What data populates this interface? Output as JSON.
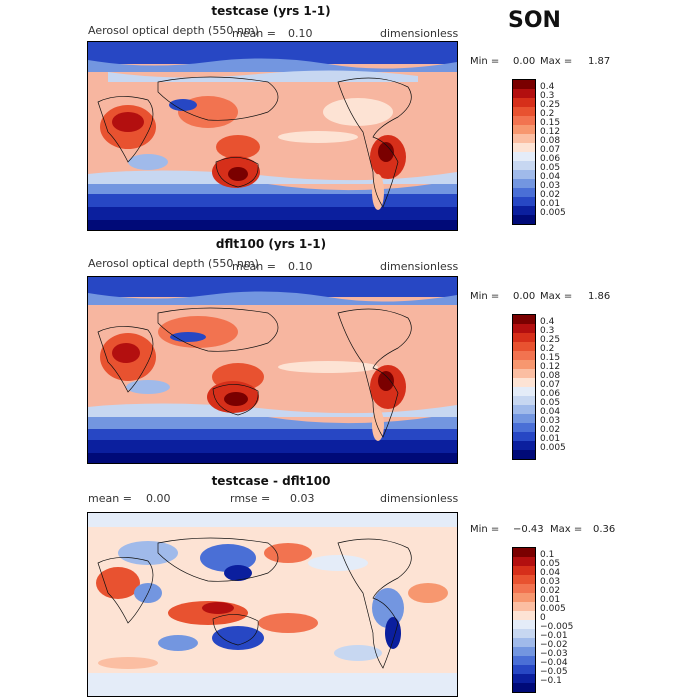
{
  "season": "SON",
  "panels": [
    {
      "title": "testcase (yrs 1-1)",
      "var_label": "Aerosol optical depth (550 nm)",
      "mean_label": "mean =",
      "mean_value": "0.10",
      "units": "dimensionless",
      "min_label": "Min =",
      "min_value": "0.00",
      "max_label": "Max =",
      "max_value": "1.87",
      "legend_labels": [
        "0.4",
        "0.3",
        "0.25",
        "0.2",
        "0.15",
        "0.12",
        "0.08",
        "0.07",
        "0.06",
        "0.05",
        "0.04",
        "0.03",
        "0.02",
        "0.01",
        "0.005"
      ]
    },
    {
      "title": "dflt100 (yrs 1-1)",
      "var_label": "Aerosol optical depth (550 nm)",
      "mean_label": "mean =",
      "mean_value": "0.10",
      "units": "dimensionless",
      "min_label": "Min =",
      "min_value": "0.00",
      "max_label": "Max =",
      "max_value": "1.86",
      "legend_labels": [
        "0.4",
        "0.3",
        "0.25",
        "0.2",
        "0.15",
        "0.12",
        "0.08",
        "0.07",
        "0.06",
        "0.05",
        "0.04",
        "0.03",
        "0.02",
        "0.01",
        "0.005"
      ]
    },
    {
      "title": "testcase - dflt100",
      "mean_label": "mean =",
      "mean_value": "0.00",
      "rmse_label": "rmse =",
      "rmse_value": "0.03",
      "units": "dimensionless",
      "min_label": "Min =",
      "min_value": "−0.43",
      "max_label": "Max =",
      "max_value": "0.36",
      "legend_labels": [
        "0.1",
        "0.05",
        "0.04",
        "0.03",
        "0.02",
        "0.01",
        "0.005",
        "0",
        "−0.005",
        "−0.01",
        "−0.02",
        "−0.03",
        "−0.04",
        "−0.05",
        "−0.1"
      ]
    }
  ],
  "colors": {
    "abs_scale": [
      "#7a0000",
      "#b30f0f",
      "#d62f1a",
      "#e85230",
      "#f27350",
      "#f7976f",
      "#fbbea2",
      "#fde3d4",
      "#e4ecf8",
      "#c7d7f1",
      "#a0baea",
      "#7396e0",
      "#4a6fd6",
      "#2747c4",
      "#0b1f9e",
      "#000a78"
    ],
    "diff_scale": [
      "#7a0000",
      "#b30f0f",
      "#d62f1a",
      "#e85230",
      "#f27350",
      "#f7976f",
      "#fbbea2",
      "#fde3d4",
      "#e4ecf8",
      "#c7d7f1",
      "#a0baea",
      "#7396e0",
      "#4a6fd6",
      "#2747c4",
      "#0b1f9e",
      "#000a78"
    ]
  }
}
